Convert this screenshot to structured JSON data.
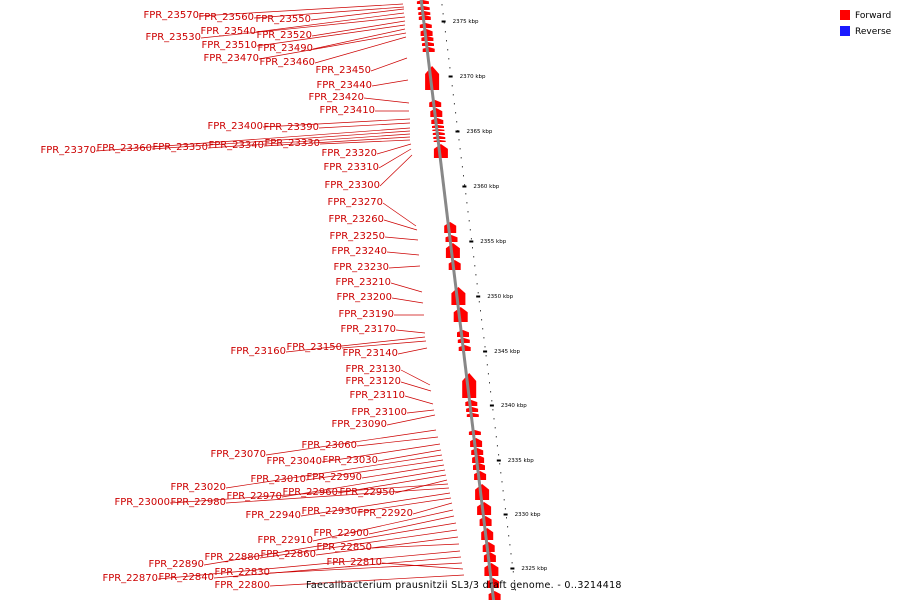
{
  "caption": "Faecalibacterium prausnitzii SL3/3 draft genome. - 0..3214418",
  "legend": [
    {
      "label": "Forward",
      "color": "#ff0000"
    },
    {
      "label": "Reverse",
      "color": "#1a1aff"
    }
  ],
  "colors": {
    "gene": "#ff0000",
    "label": "#cc0000",
    "backbone": "#888888"
  },
  "ticks": [
    "2375 kbp",
    "2370 kbp",
    "2365 kbp",
    "2360 kbp",
    "2355 kbp",
    "2350 kbp",
    "2345 kbp",
    "2340 kbp",
    "2335 kbp",
    "2330 kbp",
    "2325 kbp"
  ],
  "genes": [
    "FPR_23570",
    "FPR_23560",
    "FPR_23550",
    "FPR_23540",
    "FPR_23530",
    "FPR_23520",
    "FPR_23510",
    "FPR_23490",
    "FPR_23470",
    "FPR_23460",
    "FPR_23450",
    "FPR_23440",
    "FPR_23420",
    "FPR_23410",
    "FPR_23400",
    "FPR_23390",
    "FPR_23370",
    "FPR_23360",
    "FPR_23350",
    "FPR_23340",
    "FPR_23330",
    "FPR_23320",
    "FPR_23310",
    "FPR_23300",
    "FPR_23270",
    "FPR_23260",
    "FPR_23250",
    "FPR_23240",
    "FPR_23230",
    "FPR_23210",
    "FPR_23200",
    "FPR_23190",
    "FPR_23170",
    "FPR_23160",
    "FPR_23150",
    "FPR_23140",
    "FPR_23130",
    "FPR_23120",
    "FPR_23110",
    "FPR_23100",
    "FPR_23090",
    "FPR_23070",
    "FPR_23060",
    "FPR_23040",
    "FPR_23030",
    "FPR_23020",
    "FPR_23010",
    "FPR_22990",
    "FPR_22970",
    "FPR_22960",
    "FPR_22950",
    "FPR_23000",
    "FPR_22980",
    "FPR_22940",
    "FPR_22930",
    "FPR_22920",
    "FPR_22910",
    "FPR_22900",
    "FPR_22890",
    "FPR_22880",
    "FPR_22860",
    "FPR_22850",
    "FPR_22870",
    "FPR_22840",
    "FPR_22830",
    "FPR_22810",
    "FPR_22800"
  ]
}
